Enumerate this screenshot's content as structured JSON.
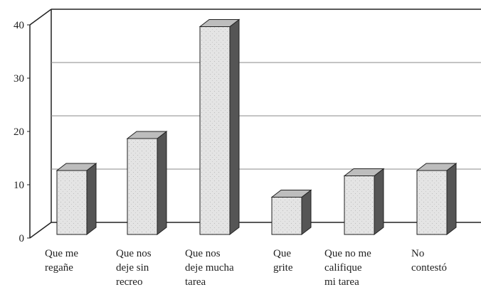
{
  "chart_data": {
    "type": "bar3d",
    "categories": [
      [
        "Que me",
        "regañe"
      ],
      [
        "Que nos",
        "deje sin",
        "recreo"
      ],
      [
        "Que nos",
        "deje mucha",
        "tarea"
      ],
      [
        "Que",
        "grite"
      ],
      [
        "Que no me",
        "califique",
        "mi tarea"
      ],
      [
        "No",
        "contestó"
      ]
    ],
    "values": [
      12,
      18,
      39,
      7,
      11,
      12
    ],
    "color": "#e4e4e4",
    "ylim": [
      0,
      40
    ],
    "yticks": [
      0,
      10,
      20,
      30,
      40
    ],
    "grid": true
  }
}
